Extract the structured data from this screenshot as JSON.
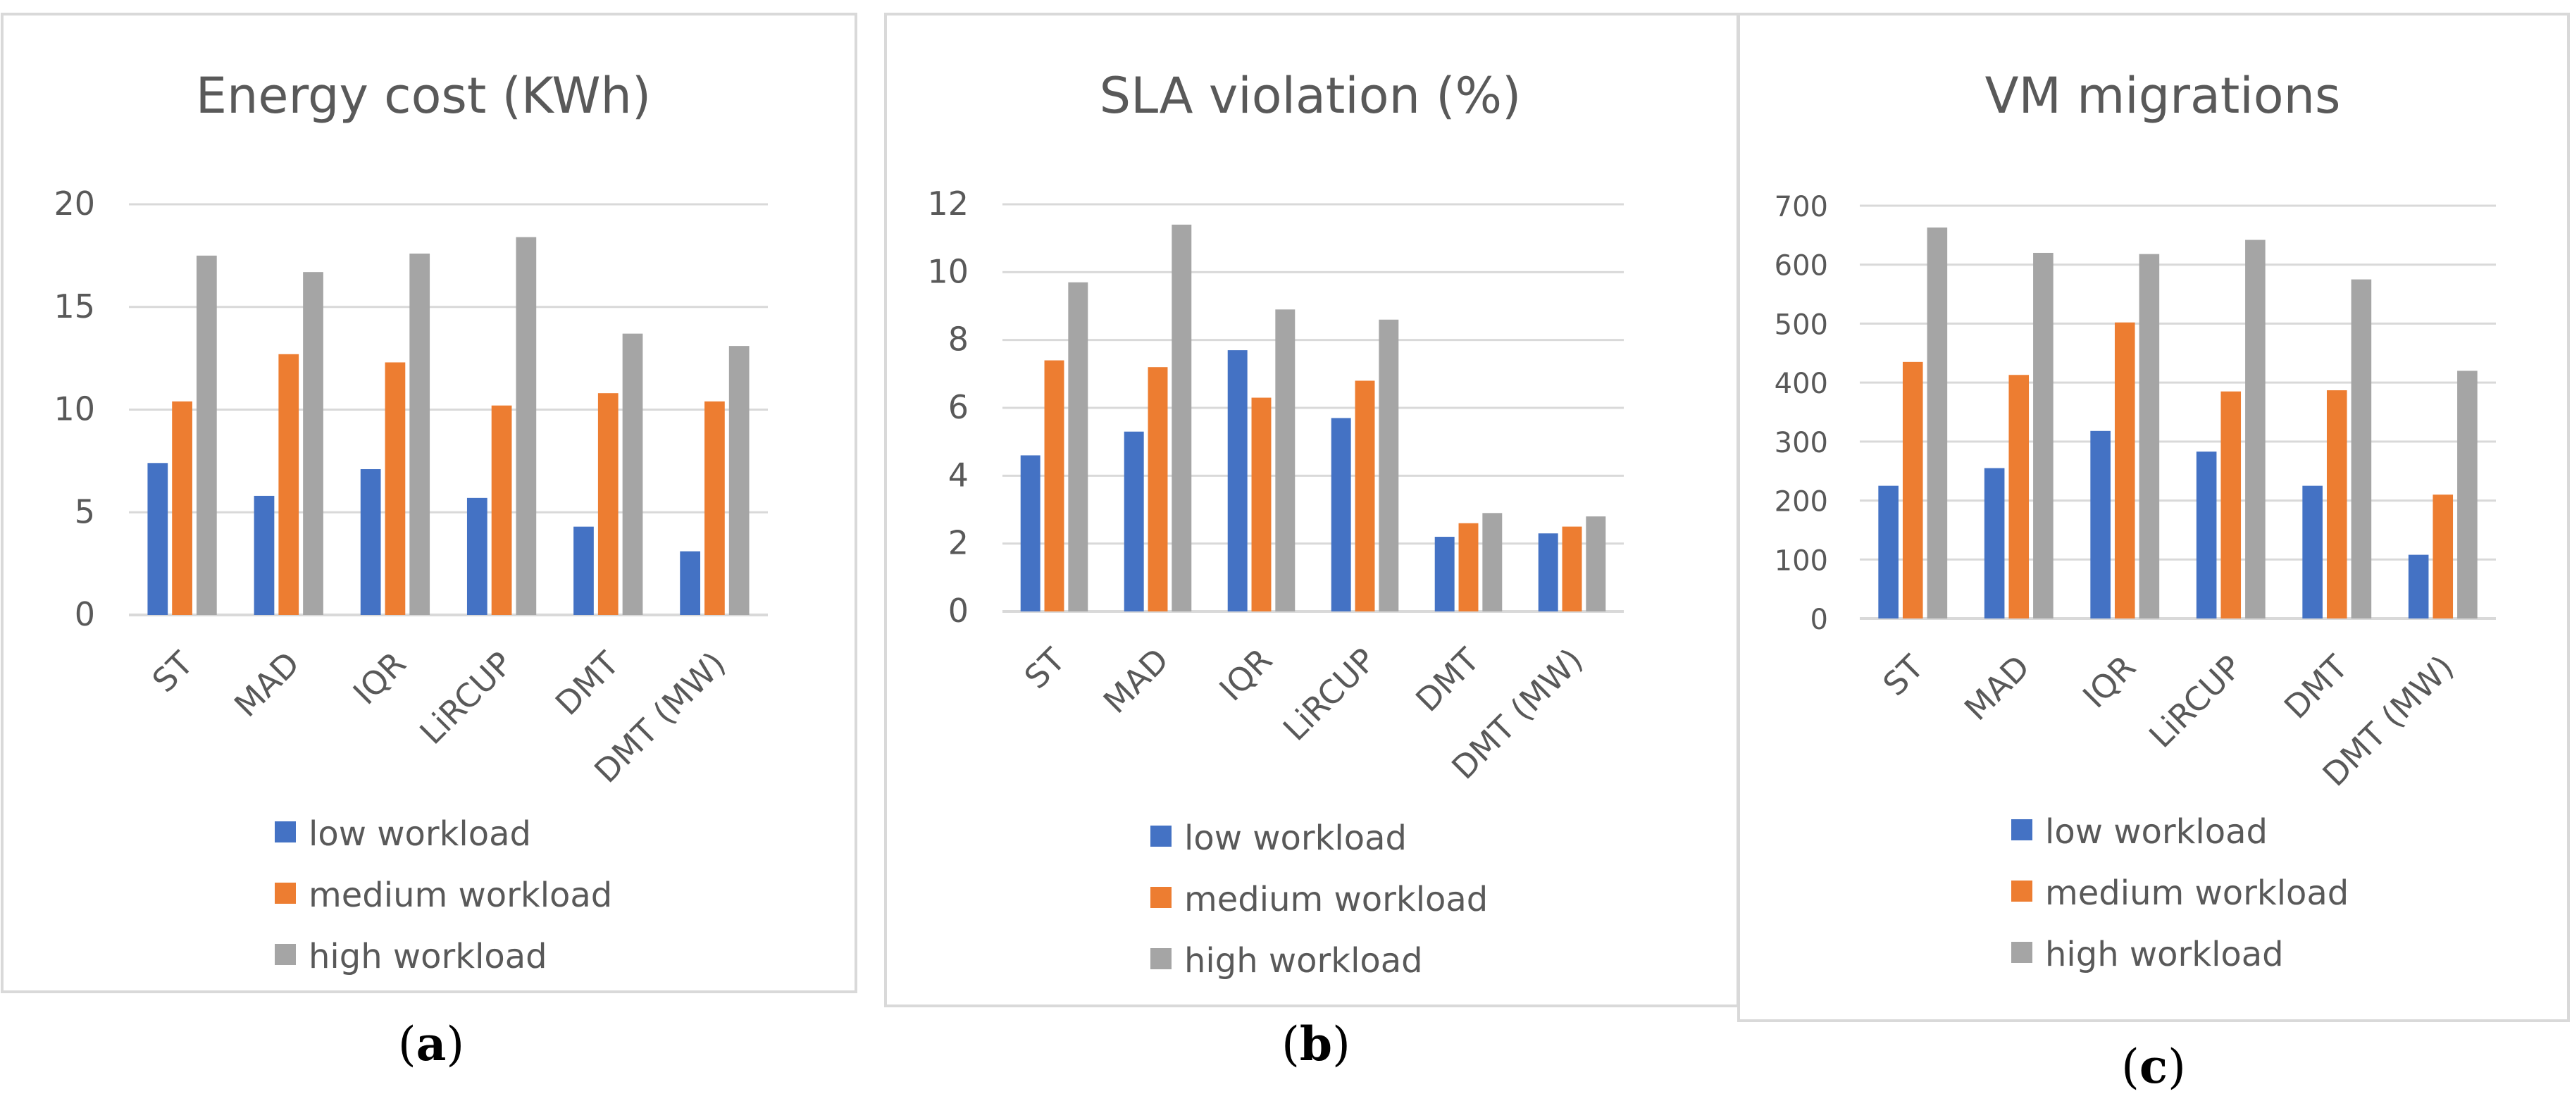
{
  "colors": {
    "low": "#4472c4",
    "medium": "#ed7d31",
    "high": "#a5a5a5",
    "grid": "#d9d9d9",
    "frame": "#d9d9d9",
    "text": "#595959"
  },
  "chart_data": [
    {
      "type": "bar",
      "title": "Energy cost (KWh)",
      "caption": "a",
      "categories": [
        "ST",
        "MAD",
        "IQR",
        "LiRCUP",
        "DMT",
        "DMT (MW)"
      ],
      "series": [
        {
          "name": "low workload",
          "color": "#4472c4",
          "values": [
            7.4,
            5.8,
            7.1,
            5.7,
            4.3,
            3.1
          ]
        },
        {
          "name": "medium workload",
          "color": "#ed7d31",
          "values": [
            10.4,
            12.7,
            12.3,
            10.2,
            10.8,
            10.4
          ]
        },
        {
          "name": "high workload",
          "color": "#a5a5a5",
          "values": [
            17.5,
            16.7,
            17.6,
            18.4,
            13.7,
            13.1
          ]
        }
      ],
      "yticks": [
        "0",
        "5",
        "10",
        "15",
        "20"
      ],
      "ylim": [
        0,
        20
      ]
    },
    {
      "type": "bar",
      "title": "SLA violation (%)",
      "caption": "b",
      "categories": [
        "ST",
        "MAD",
        "IQR",
        "LiRCUP",
        "DMT",
        "DMT (MW)"
      ],
      "series": [
        {
          "name": "low workload",
          "color": "#4472c4",
          "values": [
            4.6,
            5.3,
            7.7,
            5.7,
            2.2,
            2.3
          ]
        },
        {
          "name": "medium workload",
          "color": "#ed7d31",
          "values": [
            7.4,
            7.2,
            6.3,
            6.8,
            2.6,
            2.5
          ]
        },
        {
          "name": "high workload",
          "color": "#a5a5a5",
          "values": [
            9.7,
            11.4,
            8.9,
            8.6,
            2.9,
            2.8
          ]
        }
      ],
      "yticks": [
        "0",
        "2",
        "4",
        "6",
        "8",
        "10",
        "12"
      ],
      "ylim": [
        0,
        12
      ]
    },
    {
      "type": "bar",
      "title": "VM migrations",
      "caption": "c",
      "categories": [
        "ST",
        "MAD",
        "IQR",
        "LiRCUP",
        "DMT",
        "DMT (MW)"
      ],
      "series": [
        {
          "name": "low workload",
          "color": "#4472c4",
          "values": [
            225,
            255,
            318,
            283,
            225,
            108
          ]
        },
        {
          "name": "medium workload",
          "color": "#ed7d31",
          "values": [
            435,
            413,
            502,
            385,
            387,
            210
          ]
        },
        {
          "name": "high workload",
          "color": "#a5a5a5",
          "values": [
            663,
            620,
            618,
            642,
            575,
            420
          ]
        }
      ],
      "yticks": [
        "0",
        "100",
        "200",
        "300",
        "400",
        "500",
        "600",
        "700"
      ],
      "ylim": [
        0,
        700
      ]
    }
  ]
}
